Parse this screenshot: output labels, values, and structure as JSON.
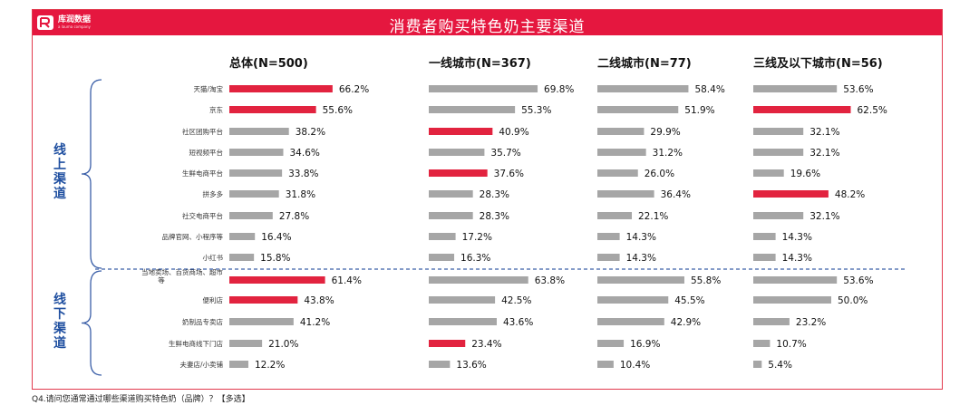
{
  "header": {
    "title": "消费者购买特色奶主要渠道",
    "logo_cn": "库润数据",
    "logo_en": "a lauma company"
  },
  "groups": [
    {
      "label": "线上渠道",
      "rows": [
        0,
        8
      ]
    },
    {
      "label": "线下渠道",
      "rows": [
        9,
        13
      ]
    }
  ],
  "question": "Q4.请问您通常通过哪些渠道购买特色奶（品牌）？【多选】",
  "colors": {
    "highlight": "#e2233f",
    "normal": "#a6a6a6",
    "divider": "#3b5fa8",
    "brace": "#3b5fa8"
  },
  "chart_data": {
    "type": "bar",
    "orientation": "horizontal",
    "categories": [
      "天猫/淘宝",
      "京东",
      "社区团购平台",
      "短视频平台",
      "生鲜电商平台",
      "拼多多",
      "社交电商平台",
      "品牌官网、小程序等",
      "小红书",
      "当地卖场、百货商场、超市等",
      "便利店",
      "奶制品专卖店",
      "生鲜电商线下门店",
      "夫妻店/小卖铺"
    ],
    "unit": "%",
    "series": [
      {
        "name": "总体(N=500)",
        "values": [
          66.2,
          55.6,
          38.2,
          34.6,
          33.8,
          31.8,
          27.8,
          16.4,
          15.8,
          61.4,
          43.8,
          41.2,
          21.0,
          12.2
        ],
        "highlight": [
          0,
          1,
          9,
          10
        ]
      },
      {
        "name": "一线城市(N=367)",
        "values": [
          69.8,
          55.3,
          40.9,
          35.7,
          37.6,
          28.3,
          28.3,
          17.2,
          16.3,
          63.8,
          42.5,
          43.6,
          23.4,
          13.6
        ],
        "highlight": [
          2,
          4,
          12
        ]
      },
      {
        "name": "二线城市(N=77)",
        "values": [
          58.4,
          51.9,
          29.9,
          31.2,
          26.0,
          36.4,
          22.1,
          14.3,
          14.3,
          55.8,
          45.5,
          42.9,
          16.9,
          10.4
        ],
        "highlight": []
      },
      {
        "name": "三线及以下城市(N=56)",
        "values": [
          53.6,
          62.5,
          32.1,
          32.1,
          19.6,
          48.2,
          32.1,
          14.3,
          14.3,
          53.6,
          50.0,
          23.2,
          10.7,
          5.4
        ],
        "highlight": [
          1,
          5
        ]
      }
    ],
    "value_labels": [
      [
        "66.2%",
        "55.6%",
        "38.2%",
        "34.6%",
        "33.8%",
        "31.8%",
        "27.8%",
        "16.4%",
        "15.8%",
        "61.4%",
        "43.8%",
        "41.2%",
        "21.0%",
        "12.2%"
      ],
      [
        "69.8%",
        "55.3%",
        "40.9%",
        "35.7%",
        "37.6%",
        "28.3%",
        "28.3%",
        "17.2%",
        "16.3%",
        "63.8%",
        "42.5%",
        "43.6%",
        "23.4%",
        "13.6%"
      ],
      [
        "58.4%",
        "51.9%",
        "29.9%",
        "31.2%",
        "26.0%",
        "36.4%",
        "22.1%",
        "14.3%",
        "14.3%",
        "55.8%",
        "45.5%",
        "42.9%",
        "16.9%",
        "10.4%"
      ],
      [
        "53.6%",
        "62.5%",
        "32.1%",
        "32.1%",
        "19.6%",
        "48.2%",
        "32.1%",
        "14.3%",
        "14.3%",
        "53.6%",
        "50.0%",
        "23.2%",
        "10.7%",
        "5.4%"
      ]
    ],
    "xlim": [
      0,
      100
    ],
    "grid": false,
    "legend": "none"
  }
}
